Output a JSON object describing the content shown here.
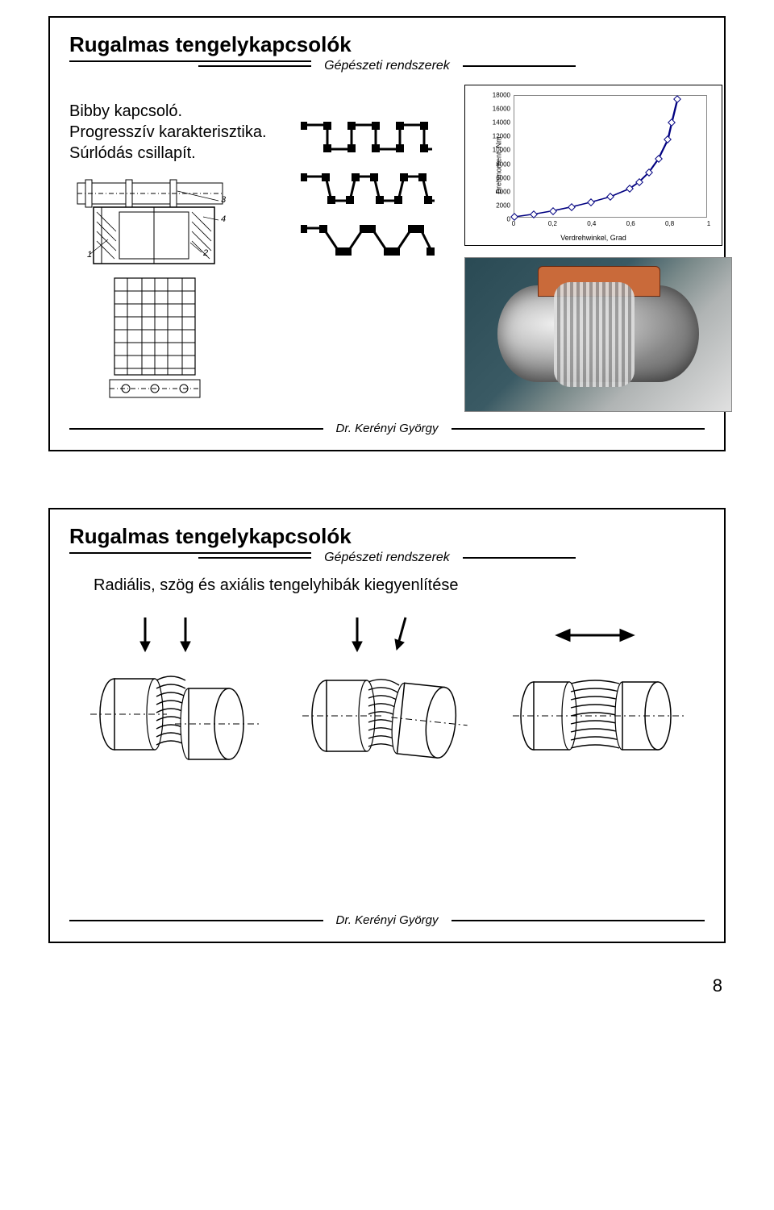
{
  "page_number": "8",
  "slide1": {
    "title": "Rugalmas tengelykapcsolók",
    "subtitle": "Gépészeti rendszerek",
    "description": "Bibby kapcsoló. Progresszív karakterisztika. Súrlódás csillapít.",
    "footer": "Dr. Kerényi György",
    "chart": {
      "type": "line",
      "y_label": "Drehmoment, Nm",
      "x_label": "Verdrehwinkel, Grad",
      "xlim": [
        0,
        1
      ],
      "ylim": [
        0,
        18000
      ],
      "xticks": [
        0,
        0.2,
        0.4,
        0.6,
        0.8,
        1
      ],
      "xtick_labels": [
        "0",
        "0,2",
        "0,4",
        "0,6",
        "0,8",
        "1"
      ],
      "yticks": [
        0,
        2000,
        4000,
        6000,
        8000,
        10000,
        12000,
        14000,
        16000,
        18000
      ],
      "ytick_labels": [
        "0",
        "2000",
        "4000",
        "6000",
        "8000",
        "10000",
        "12000",
        "14000",
        "16000",
        "18000"
      ],
      "points_x": [
        0,
        0.1,
        0.2,
        0.3,
        0.4,
        0.5,
        0.6,
        0.65,
        0.7,
        0.75,
        0.8,
        0.82,
        0.85
      ],
      "points_y": [
        0,
        400,
        900,
        1500,
        2200,
        3000,
        4200,
        5200,
        6600,
        8600,
        11500,
        14000,
        17500
      ],
      "line_color": "#000080",
      "marker_fill": "#ffffff",
      "marker_border": "#000080",
      "background_color": "#ffffff",
      "border_color": "#000000",
      "grid_color": "#888888",
      "tick_fontsize": 8,
      "label_fontsize": 9
    },
    "schematic_labels": [
      "1",
      "2",
      "3",
      "4"
    ]
  },
  "slide2": {
    "title": "Rugalmas tengelykapcsolók",
    "subtitle": "Gépészeti rendszerek",
    "body": "Radiális, szög és axiális tengelyhibák kiegyenlítése",
    "footer": "Dr. Kerényi György",
    "diagrams": [
      "radial",
      "angular",
      "axial"
    ]
  }
}
